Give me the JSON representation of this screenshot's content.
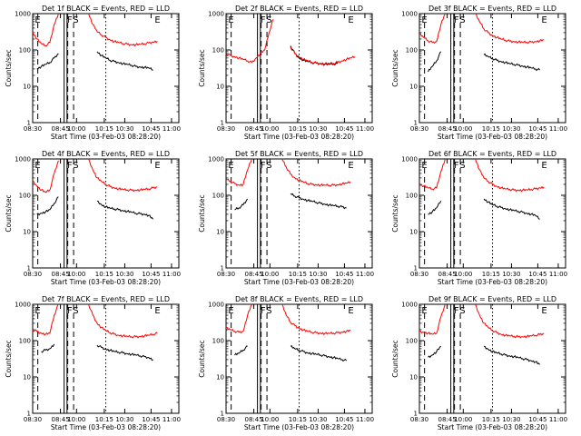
{
  "figure": {
    "x_time_label": "Start Time (03-Feb-03 08:28:20)",
    "y_label": "Counts/sec"
  },
  "chart_data": [
    {
      "type": "line",
      "title": "Det 1f BLACK = Events, RED = LLD",
      "xlabel": "Start Time (03-Feb-03 08:28:20)",
      "ylabel": "Counts/sec",
      "x_ticks": [
        "08:30",
        "08:45",
        "10:00",
        "10:15",
        "10:30",
        "10:45",
        "11:00"
      ],
      "y_ticks": [
        "1",
        "10",
        "100",
        "1000"
      ],
      "ylim": [
        1,
        1000
      ],
      "yscale": "log",
      "markers": [
        "E",
        "F",
        "S",
        "E"
      ],
      "series": [
        {
          "name": "Events",
          "color": "#000000",
          "values": [
            null,
            30,
            35,
            40,
            45,
            60,
            80,
            null,
            null,
            null,
            null,
            null,
            null,
            null,
            null,
            90,
            70,
            60,
            52,
            48,
            45,
            42,
            40,
            38,
            35,
            34,
            33,
            32,
            28,
            null,
            null,
            null,
            null,
            null,
            null
          ]
        },
        {
          "name": "LLD",
          "color": "#ff0000",
          "values": [
            300,
            200,
            150,
            130,
            160,
            500,
            1000,
            null,
            null,
            null,
            null,
            null,
            null,
            1000,
            500,
            320,
            260,
            220,
            190,
            170,
            160,
            150,
            145,
            140,
            140,
            142,
            148,
            155,
            165,
            175,
            null,
            null,
            null,
            null,
            null
          ]
        }
      ]
    },
    {
      "type": "line",
      "title": "Det 2f BLACK = Events, RED = LLD",
      "xlabel": "Start Time (03-Feb-03 08:28:20)",
      "ylabel": "Counts/sec",
      "x_ticks": [
        "08:30",
        "08:45",
        "10:00",
        "10:15",
        "10:30",
        "10:45",
        "11:00"
      ],
      "y_ticks": [
        "1",
        "10",
        "100",
        "1000"
      ],
      "ylim": [
        1,
        1000
      ],
      "yscale": "log",
      "markers": [
        "E",
        "F",
        "S",
        "E"
      ],
      "series": [
        {
          "name": "Events",
          "color": "#000000",
          "values": [
            null,
            null,
            null,
            null,
            null,
            null,
            null,
            null,
            null,
            null,
            null,
            null,
            null,
            null,
            null,
            130,
            80,
            60,
            52,
            48,
            45,
            43,
            42,
            40,
            40,
            41,
            42,
            null,
            null,
            null,
            null,
            null,
            null,
            null,
            null
          ]
        },
        {
          "name": "LLD",
          "color": "#ff0000",
          "values": [
            80,
            70,
            65,
            60,
            55,
            50,
            45,
            60,
            80,
            100,
            300,
            700,
            null,
            null,
            null,
            120,
            80,
            65,
            55,
            50,
            46,
            44,
            43,
            42,
            42,
            43,
            46,
            50,
            55,
            60,
            65,
            null,
            null,
            null,
            null
          ]
        }
      ]
    },
    {
      "type": "line",
      "title": "Det 3f BLACK = Events, RED = LLD",
      "xlabel": "Start Time (03-Feb-03 08:28:20)",
      "ylabel": "Counts/sec",
      "x_ticks": [
        "08:30",
        "08:45",
        "10:00",
        "10:15",
        "10:30",
        "10:45",
        "11:00"
      ],
      "y_ticks": [
        "1",
        "10",
        "100",
        "1000"
      ],
      "ylim": [
        1,
        1000
      ],
      "yscale": "log",
      "markers": [
        "E",
        "F",
        "S",
        "E"
      ],
      "series": [
        {
          "name": "Events",
          "color": "#000000",
          "values": [
            null,
            null,
            25,
            35,
            50,
            90,
            null,
            null,
            null,
            null,
            null,
            null,
            null,
            null,
            null,
            75,
            65,
            58,
            52,
            48,
            45,
            42,
            40,
            38,
            36,
            34,
            32,
            30,
            28,
            null,
            null,
            null,
            null,
            null,
            null
          ]
        },
        {
          "name": "LLD",
          "color": "#ff0000",
          "values": [
            280,
            220,
            180,
            160,
            170,
            500,
            1000,
            null,
            null,
            null,
            null,
            null,
            null,
            1000,
            600,
            380,
            300,
            250,
            220,
            200,
            185,
            175,
            170,
            165,
            162,
            162,
            165,
            170,
            178,
            188,
            null,
            null,
            null,
            null,
            null
          ]
        }
      ]
    },
    {
      "type": "line",
      "title": "Det 4f BLACK = Events, RED = LLD",
      "xlabel": "Start Time (03-Feb-03 08:28:20)",
      "ylabel": "Counts/sec",
      "x_ticks": [
        "08:30",
        "08:45",
        "10:00",
        "10:15",
        "10:30",
        "10:45",
        "11:00"
      ],
      "y_ticks": [
        "1",
        "10",
        "100",
        "1000"
      ],
      "ylim": [
        1,
        1000
      ],
      "yscale": "log",
      "markers": [
        "E",
        "F",
        "S",
        "E"
      ],
      "series": [
        {
          "name": "Events",
          "color": "#000000",
          "values": [
            null,
            30,
            32,
            35,
            40,
            60,
            90,
            null,
            null,
            null,
            null,
            null,
            null,
            null,
            null,
            70,
            55,
            48,
            44,
            42,
            40,
            38,
            36,
            34,
            32,
            31,
            30,
            28,
            22,
            null,
            null,
            null,
            null,
            null,
            null
          ]
        },
        {
          "name": "LLD",
          "color": "#ff0000",
          "values": [
            250,
            180,
            140,
            120,
            140,
            400,
            900,
            null,
            null,
            null,
            null,
            null,
            null,
            1000,
            500,
            300,
            240,
            200,
            175,
            160,
            150,
            145,
            140,
            138,
            138,
            140,
            145,
            150,
            160,
            170,
            null,
            null,
            null,
            null,
            null
          ]
        }
      ]
    },
    {
      "type": "line",
      "title": "Det 5f BLACK = Events, RED = LLD",
      "xlabel": "Start Time (03-Feb-03 08:28:20)",
      "ylabel": "Counts/sec",
      "x_ticks": [
        "08:30",
        "08:45",
        "10:00",
        "10:15",
        "10:30",
        "10:45",
        "11:00"
      ],
      "y_ticks": [
        "1",
        "10",
        "100",
        "1000"
      ],
      "ylim": [
        1,
        1000
      ],
      "yscale": "log",
      "markers": [
        "E",
        "F",
        "S",
        "E"
      ],
      "series": [
        {
          "name": "Events",
          "color": "#000000",
          "values": [
            null,
            null,
            40,
            45,
            55,
            80,
            null,
            null,
            null,
            null,
            null,
            null,
            null,
            null,
            null,
            110,
            95,
            85,
            78,
            72,
            68,
            64,
            60,
            57,
            54,
            52,
            50,
            48,
            45,
            null,
            null,
            null,
            null,
            null,
            null
          ]
        },
        {
          "name": "LLD",
          "color": "#ff0000",
          "values": [
            280,
            240,
            210,
            190,
            200,
            500,
            1000,
            null,
            null,
            null,
            null,
            null,
            null,
            1000,
            600,
            380,
            300,
            260,
            230,
            210,
            200,
            195,
            190,
            188,
            188,
            190,
            195,
            205,
            215,
            230,
            null,
            null,
            null,
            null,
            null
          ]
        }
      ]
    },
    {
      "type": "line",
      "title": "Det 6f BLACK = Events, RED = LLD",
      "xlabel": "Start Time (03-Feb-03 08:28:20)",
      "ylabel": "Counts/sec",
      "x_ticks": [
        "08:30",
        "08:45",
        "10:00",
        "10:15",
        "10:30",
        "10:45",
        "11:00"
      ],
      "y_ticks": [
        "1",
        "10",
        "100",
        "1000"
      ],
      "ylim": [
        1,
        1000
      ],
      "yscale": "log",
      "markers": [
        "E",
        "F",
        "S",
        "E"
      ],
      "series": [
        {
          "name": "Events",
          "color": "#000000",
          "values": [
            null,
            null,
            30,
            35,
            45,
            70,
            null,
            null,
            null,
            null,
            null,
            null,
            null,
            null,
            null,
            80,
            65,
            55,
            50,
            46,
            43,
            40,
            38,
            36,
            34,
            32,
            30,
            28,
            22,
            null,
            null,
            null,
            null,
            null,
            null
          ]
        },
        {
          "name": "LLD",
          "color": "#ff0000",
          "values": [
            200,
            180,
            160,
            150,
            160,
            450,
            1000,
            null,
            null,
            null,
            null,
            null,
            null,
            1000,
            500,
            300,
            240,
            200,
            175,
            160,
            150,
            145,
            140,
            138,
            138,
            140,
            145,
            150,
            160,
            170,
            null,
            null,
            null,
            null,
            null
          ]
        }
      ]
    },
    {
      "type": "line",
      "title": "Det 7f BLACK = Events, RED = LLD",
      "xlabel": "Start Time (03-Feb-03 08:28:20)",
      "ylabel": "Counts/sec",
      "x_ticks": [
        "08:30",
        "08:45",
        "10:00",
        "10:15",
        "10:30",
        "10:45",
        "11:00"
      ],
      "y_ticks": [
        "1",
        "10",
        "100",
        "1000"
      ],
      "ylim": [
        1,
        1000
      ],
      "yscale": "log",
      "markers": [
        "E",
        "F",
        "S",
        "E"
      ],
      "series": [
        {
          "name": "Events",
          "color": "#000000",
          "values": [
            null,
            null,
            50,
            55,
            60,
            80,
            null,
            null,
            null,
            null,
            null,
            null,
            null,
            null,
            null,
            75,
            65,
            58,
            54,
            50,
            48,
            46,
            44,
            42,
            40,
            38,
            36,
            34,
            30,
            null,
            null,
            null,
            null,
            null,
            null
          ]
        },
        {
          "name": "LLD",
          "color": "#ff0000",
          "values": [
            200,
            180,
            160,
            150,
            160,
            500,
            1000,
            null,
            null,
            null,
            null,
            null,
            null,
            1000,
            500,
            300,
            230,
            190,
            165,
            150,
            140,
            135,
            130,
            128,
            128,
            130,
            135,
            140,
            150,
            160,
            null,
            null,
            null,
            null,
            null
          ]
        }
      ]
    },
    {
      "type": "line",
      "title": "Det 8f BLACK = Events, RED = LLD",
      "xlabel": "Start Time (03-Feb-03 08:28:20)",
      "ylabel": "Counts/sec",
      "x_ticks": [
        "08:30",
        "08:45",
        "10:00",
        "10:15",
        "10:30",
        "10:45",
        "11:00"
      ],
      "y_ticks": [
        "1",
        "10",
        "100",
        "1000"
      ],
      "ylim": [
        1,
        1000
      ],
      "yscale": "log",
      "markers": [
        "E",
        "F",
        "S",
        "E"
      ],
      "series": [
        {
          "name": "Events",
          "color": "#000000",
          "values": [
            null,
            null,
            40,
            45,
            55,
            70,
            null,
            null,
            null,
            null,
            null,
            null,
            null,
            null,
            null,
            70,
            60,
            54,
            50,
            46,
            44,
            42,
            40,
            38,
            36,
            34,
            32,
            30,
            28,
            null,
            null,
            null,
            null,
            null,
            null
          ]
        },
        {
          "name": "LLD",
          "color": "#ff0000",
          "values": [
            220,
            200,
            180,
            170,
            180,
            500,
            1000,
            null,
            null,
            null,
            null,
            null,
            null,
            1000,
            500,
            320,
            260,
            220,
            195,
            180,
            170,
            165,
            160,
            158,
            158,
            160,
            165,
            172,
            180,
            190,
            null,
            null,
            null,
            null,
            null
          ]
        }
      ]
    },
    {
      "type": "line",
      "title": "Det 9f BLACK = Events, RED = LLD",
      "xlabel": "Start Time (03-Feb-03 08:28:20)",
      "ylabel": "Counts/sec",
      "x_ticks": [
        "08:30",
        "08:45",
        "10:00",
        "10:15",
        "10:30",
        "10:45",
        "11:00"
      ],
      "y_ticks": [
        "1",
        "10",
        "100",
        "1000"
      ],
      "ylim": [
        1,
        1000
      ],
      "yscale": "log",
      "markers": [
        "E",
        "F",
        "S",
        "E"
      ],
      "series": [
        {
          "name": "Events",
          "color": "#000000",
          "values": [
            null,
            null,
            35,
            40,
            50,
            70,
            null,
            null,
            null,
            null,
            null,
            null,
            null,
            null,
            null,
            70,
            58,
            50,
            46,
            43,
            40,
            38,
            36,
            34,
            32,
            30,
            28,
            26,
            22,
            null,
            null,
            null,
            null,
            null,
            null
          ]
        },
        {
          "name": "LLD",
          "color": "#ff0000",
          "values": [
            180,
            170,
            160,
            150,
            160,
            450,
            1000,
            null,
            null,
            null,
            null,
            null,
            null,
            1000,
            500,
            300,
            230,
            190,
            165,
            150,
            140,
            135,
            130,
            128,
            128,
            130,
            135,
            140,
            148,
            158,
            null,
            null,
            null,
            null,
            null
          ]
        }
      ]
    }
  ]
}
